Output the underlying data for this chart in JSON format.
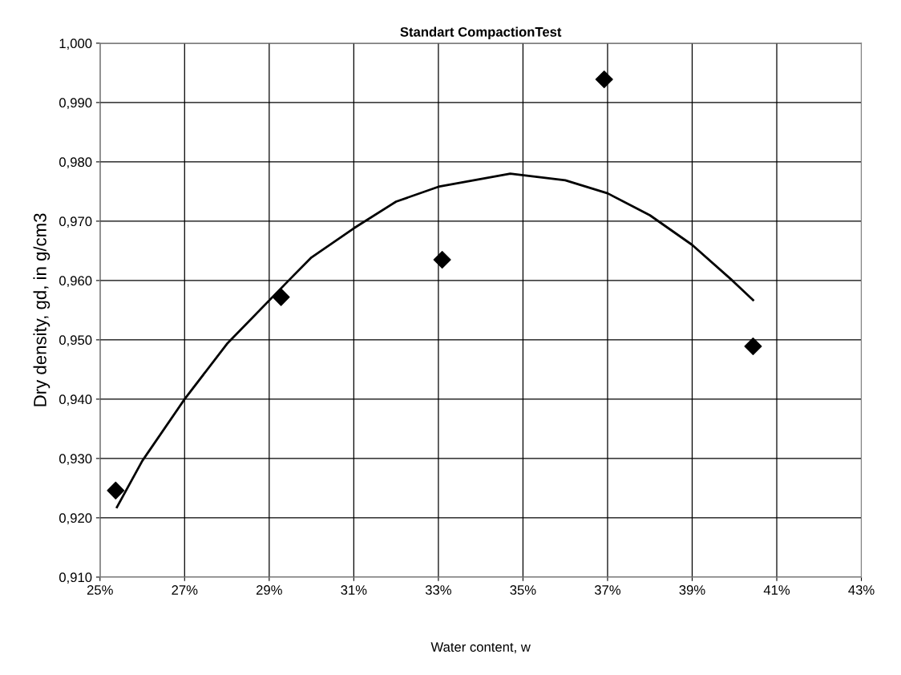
{
  "chart_data": {
    "type": "scatter",
    "title": "Standart CompactionTest",
    "xlabel": "Water content, w",
    "ylabel": "Dry density, gd, in g/cm3",
    "xlim": [
      25,
      43
    ],
    "ylim": [
      0.91,
      1.0
    ],
    "xticks": [
      {
        "value": 25,
        "label": "25%"
      },
      {
        "value": 27,
        "label": "27%"
      },
      {
        "value": 29,
        "label": "29%"
      },
      {
        "value": 31,
        "label": "31%"
      },
      {
        "value": 33,
        "label": "33%"
      },
      {
        "value": 35,
        "label": "35%"
      },
      {
        "value": 37,
        "label": "37%"
      },
      {
        "value": 39,
        "label": "39%"
      },
      {
        "value": 41,
        "label": "41%"
      },
      {
        "value": 43,
        "label": "43%"
      }
    ],
    "yticks": [
      {
        "value": 0.91,
        "label": "0,910"
      },
      {
        "value": 0.92,
        "label": "0,920"
      },
      {
        "value": 0.93,
        "label": "0,930"
      },
      {
        "value": 0.94,
        "label": "0,940"
      },
      {
        "value": 0.95,
        "label": "0,950"
      },
      {
        "value": 0.96,
        "label": "0,960"
      },
      {
        "value": 0.97,
        "label": "0,970"
      },
      {
        "value": 0.98,
        "label": "0,980"
      },
      {
        "value": 0.99,
        "label": "0,990"
      },
      {
        "value": 1.0,
        "label": "1,000"
      }
    ],
    "grid": true,
    "series": [
      {
        "color": "#000000",
        "marker": "diamond",
        "x": [
          25.37,
          29.28,
          33.09,
          36.92,
          40.44
        ],
        "values": [
          0.9246,
          0.9572,
          0.9635,
          0.9939,
          0.9489
        ]
      },
      {
        "type": "line",
        "color": "#000000",
        "marker": "none",
        "line_style": "solid",
        "x": [
          25.4,
          26,
          27,
          28,
          29.46,
          30,
          31,
          32,
          33,
          34.7,
          36,
          37,
          38,
          39,
          39.95,
          40.44
        ],
        "values": [
          0.9218,
          0.9296,
          0.94,
          0.9493,
          0.96,
          0.9639,
          0.9688,
          0.9733,
          0.9758,
          0.978,
          0.9769,
          0.9747,
          0.971,
          0.966,
          0.96,
          0.9567
        ]
      }
    ]
  }
}
